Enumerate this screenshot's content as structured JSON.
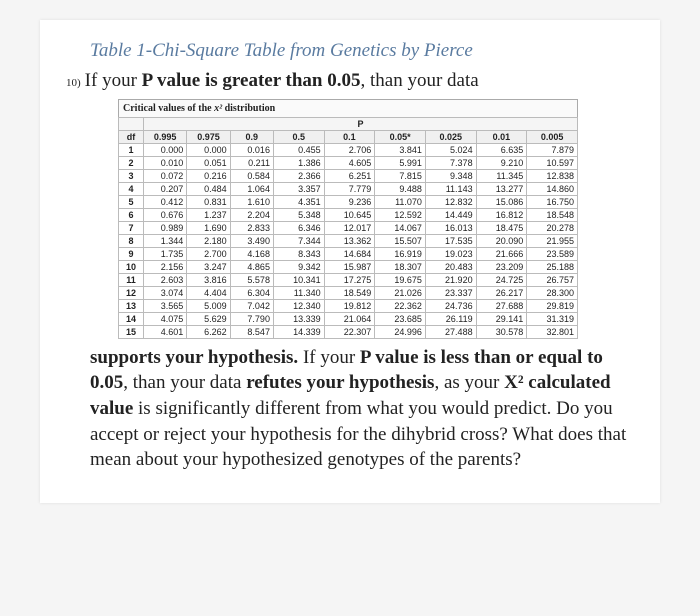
{
  "title": "Table 1-Chi-Square Table from Genetics by Pierce",
  "question_number": "10)",
  "line1_a": "If your ",
  "line1_b": "P value is greater than 0.05",
  "line1_c": ", than your data",
  "table": {
    "caption_a": "Critical values of the ",
    "caption_chi": "x²",
    "caption_b": " distribution",
    "p_label": "P",
    "df_label": "df",
    "p_headers": [
      "0.995",
      "0.975",
      "0.9",
      "0.5",
      "0.1",
      "0.05*",
      "0.025",
      "0.01",
      "0.005"
    ],
    "rows": [
      [
        "1",
        "0.000",
        "0.000",
        "0.016",
        "0.455",
        "2.706",
        "3.841",
        "5.024",
        "6.635",
        "7.879"
      ],
      [
        "2",
        "0.010",
        "0.051",
        "0.211",
        "1.386",
        "4.605",
        "5.991",
        "7.378",
        "9.210",
        "10.597"
      ],
      [
        "3",
        "0.072",
        "0.216",
        "0.584",
        "2.366",
        "6.251",
        "7.815",
        "9.348",
        "11.345",
        "12.838"
      ],
      [
        "4",
        "0.207",
        "0.484",
        "1.064",
        "3.357",
        "7.779",
        "9.488",
        "11.143",
        "13.277",
        "14.860"
      ],
      [
        "5",
        "0.412",
        "0.831",
        "1.610",
        "4.351",
        "9.236",
        "11.070",
        "12.832",
        "15.086",
        "16.750"
      ],
      [
        "6",
        "0.676",
        "1.237",
        "2.204",
        "5.348",
        "10.645",
        "12.592",
        "14.449",
        "16.812",
        "18.548"
      ],
      [
        "7",
        "0.989",
        "1.690",
        "2.833",
        "6.346",
        "12.017",
        "14.067",
        "16.013",
        "18.475",
        "20.278"
      ],
      [
        "8",
        "1.344",
        "2.180",
        "3.490",
        "7.344",
        "13.362",
        "15.507",
        "17.535",
        "20.090",
        "21.955"
      ],
      [
        "9",
        "1.735",
        "2.700",
        "4.168",
        "8.343",
        "14.684",
        "16.919",
        "19.023",
        "21.666",
        "23.589"
      ],
      [
        "10",
        "2.156",
        "3.247",
        "4.865",
        "9.342",
        "15.987",
        "18.307",
        "20.483",
        "23.209",
        "25.188"
      ],
      [
        "11",
        "2.603",
        "3.816",
        "5.578",
        "10.341",
        "17.275",
        "19.675",
        "21.920",
        "24.725",
        "26.757"
      ],
      [
        "12",
        "3.074",
        "4.404",
        "6.304",
        "11.340",
        "18.549",
        "21.026",
        "23.337",
        "26.217",
        "28.300"
      ],
      [
        "13",
        "3.565",
        "5.009",
        "7.042",
        "12.340",
        "19.812",
        "22.362",
        "24.736",
        "27.688",
        "29.819"
      ],
      [
        "14",
        "4.075",
        "5.629",
        "7.790",
        "13.339",
        "21.064",
        "23.685",
        "26.119",
        "29.141",
        "31.319"
      ],
      [
        "15",
        "4.601",
        "6.262",
        "8.547",
        "14.339",
        "22.307",
        "24.996",
        "27.488",
        "30.578",
        "32.801"
      ]
    ]
  },
  "body": {
    "p1_a": "supports your hypothesis.",
    "p1_b": " If your ",
    "p1_c": "P value is less than or equal to 0.05",
    "p1_d": ", than your data ",
    "p1_e": "refutes your hypothesis",
    "p1_f": ", as your ",
    "p1_g": "X² calculated value",
    "p1_h": " is significantly different from what you would predict. Do you accept or reject your hypothesis for the dihybrid cross?  What does that mean about your hypothesized genotypes of the parents?"
  },
  "colors": {
    "title": "#5a7ba0",
    "text": "#222222",
    "bg": "#f5f5f5",
    "border": "#bbbbbb"
  }
}
